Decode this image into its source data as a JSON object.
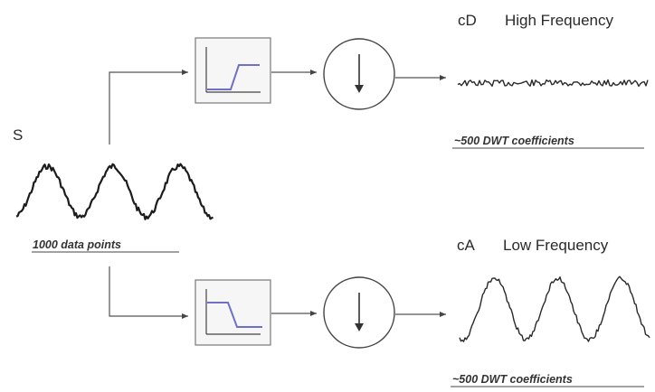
{
  "input": {
    "label": "S",
    "note": "1000 data points"
  },
  "high_branch": {
    "filter": "high-pass",
    "output_label": "cD",
    "output_title": "High Frequency",
    "note": "~500 DWT coefficients"
  },
  "low_branch": {
    "filter": "low-pass",
    "output_label": "cA",
    "output_title": "Low Frequency",
    "note": "~500 DWT coefficients"
  },
  "colors": {
    "filter_response": "#7070c8",
    "signal": "#1c1c1c",
    "wires": "#555555"
  },
  "icons": {
    "downsample": "down-arrow-icon"
  }
}
